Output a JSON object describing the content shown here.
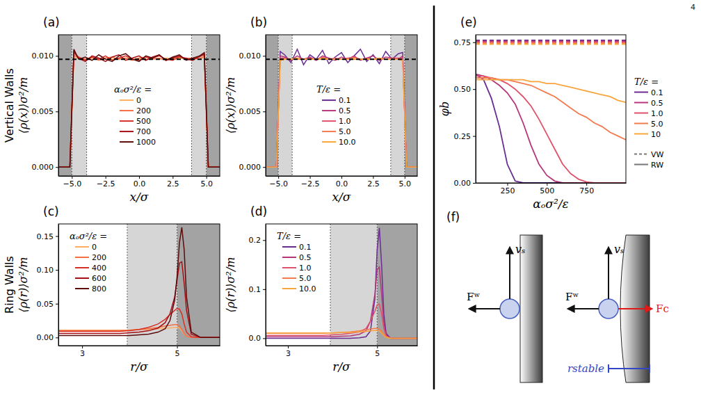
{
  "page_number": "4",
  "row_labels": [
    "Vertical Walls",
    "Ring Walls"
  ],
  "chart_data": [
    {
      "type": "line",
      "panel": "(a)",
      "xlabel": "x/σ",
      "ylabel": "⟨ρ(x)⟩σ²/m",
      "xlim": [
        -6,
        6
      ],
      "ylim": [
        -0.0008,
        0.0119
      ],
      "xticks": [
        {
          "value": -5,
          "label": "−5.0"
        },
        {
          "value": -2.5,
          "label": "−2.5"
        },
        {
          "value": 0,
          "label": "0.0"
        },
        2.5,
        {
          "value": 5,
          "label": "5.0"
        }
      ],
      "yticks": [
        {
          "value": 0,
          "label": "0.000"
        },
        0.005,
        {
          "value": 0.01,
          "label": "0.010"
        }
      ],
      "legend": "center",
      "legend_title": "αₒσ²/ε =",
      "walls": [
        -5,
        5
      ],
      "interaction_zones": [
        [
          -5,
          -3.9
        ],
        [
          3.9,
          5
        ]
      ],
      "reference_density": 0.0097,
      "x": [
        -6,
        -5.15,
        -5.0,
        -4.85,
        -4.5,
        -4,
        -3.5,
        -3,
        -2.5,
        -2,
        -1.5,
        -1,
        -0.5,
        0,
        0.5,
        1,
        1.5,
        2,
        2.5,
        3,
        3.5,
        4,
        4.5,
        4.85,
        5.0,
        5.15,
        6
      ],
      "series": [
        {
          "name": "0",
          "color": "#fdae61",
          "values": [
            0,
            0,
            0.0049,
            0.0099,
            0.0098,
            0.0097,
            0.0098,
            0.0097,
            0.0098,
            0.0097,
            0.0098,
            0.0098,
            0.0097,
            0.0098,
            0.0097,
            0.0098,
            0.0097,
            0.0098,
            0.0097,
            0.0098,
            0.0097,
            0.0098,
            0.0097,
            0.0099,
            0.0049,
            0,
            0
          ]
        },
        {
          "name": "200",
          "color": "#f46d43",
          "values": [
            0,
            0,
            0.005,
            0.0101,
            0.0098,
            0.0097,
            0.0099,
            0.0096,
            0.0098,
            0.0099,
            0.0097,
            0.0098,
            0.0096,
            0.0098,
            0.0099,
            0.0097,
            0.0098,
            0.0096,
            0.0098,
            0.0099,
            0.0097,
            0.0098,
            0.0097,
            0.01,
            0.005,
            0,
            0
          ]
        },
        {
          "name": "500",
          "color": "#d73027",
          "values": [
            0,
            0,
            0.0051,
            0.0103,
            0.0099,
            0.0096,
            0.0099,
            0.0097,
            0.01,
            0.0096,
            0.0098,
            0.01,
            0.0097,
            0.0096,
            0.0099,
            0.0098,
            0.01,
            0.0097,
            0.0096,
            0.0099,
            0.0098,
            0.0097,
            0.0099,
            0.0102,
            0.0051,
            0,
            0
          ]
        },
        {
          "name": "700",
          "color": "#a50f15",
          "values": [
            0,
            0,
            0.0052,
            0.0104,
            0.0098,
            0.0095,
            0.01,
            0.0098,
            0.0095,
            0.0099,
            0.0101,
            0.0096,
            0.0098,
            0.01,
            0.0096,
            0.0099,
            0.0101,
            0.0096,
            0.0098,
            0.01,
            0.0097,
            0.0096,
            0.01,
            0.0101,
            0.0052,
            0,
            0
          ]
        },
        {
          "name": "1000",
          "color": "#5c0a0a",
          "values": [
            0,
            0,
            0.0053,
            0.0106,
            0.0097,
            0.0099,
            0.0096,
            0.0101,
            0.0097,
            0.0095,
            0.01,
            0.0102,
            0.0097,
            0.0095,
            0.01,
            0.0098,
            0.0101,
            0.0096,
            0.0099,
            0.0101,
            0.0096,
            0.0098,
            0.01,
            0.0103,
            0.0052,
            0,
            0
          ]
        }
      ]
    },
    {
      "type": "line",
      "panel": "(b)",
      "xlabel": "x/σ",
      "ylabel": "⟨ρ(x)⟩σ²/m",
      "xlim": [
        -6,
        6
      ],
      "ylim": [
        -0.0008,
        0.0119
      ],
      "xticks": [
        {
          "value": -5,
          "label": "−5.0"
        },
        {
          "value": -2.5,
          "label": "−2.5"
        },
        {
          "value": 0,
          "label": "0.0"
        },
        2.5,
        {
          "value": 5,
          "label": "5.0"
        }
      ],
      "yticks": [
        {
          "value": 0,
          "label": "0.000"
        },
        0.005,
        {
          "value": 0.01,
          "label": "0.010"
        }
      ],
      "legend": "center",
      "legend_title": "T/ε =",
      "walls": [
        -5,
        5
      ],
      "interaction_zones": [
        [
          -5,
          -3.9
        ],
        [
          3.9,
          5
        ]
      ],
      "reference_density": 0.0097,
      "x": [
        -6,
        -5.15,
        -5.0,
        -4.85,
        -4.5,
        -4,
        -3.5,
        -3,
        -2.5,
        -2,
        -1.5,
        -1,
        -0.5,
        0,
        0.5,
        1,
        1.5,
        2,
        2.5,
        3,
        3.5,
        4,
        4.5,
        4.85,
        5.0,
        5.15,
        6
      ],
      "series": [
        {
          "name": "0.1",
          "color": "#6a2c91",
          "values": [
            0,
            0,
            0.0052,
            0.0104,
            0.0101,
            0.0094,
            0.0106,
            0.0092,
            0.0101,
            0.0097,
            0.0105,
            0.0093,
            0.0099,
            0.0103,
            0.0094,
            0.01,
            0.0106,
            0.0095,
            0.0101,
            0.0093,
            0.0104,
            0.0097,
            0.0102,
            0.0103,
            0.0051,
            0,
            0
          ]
        },
        {
          "name": "0.5",
          "color": "#b5367a",
          "values": [
            0,
            0,
            0.005,
            0.01,
            0.0099,
            0.0096,
            0.01,
            0.0097,
            0.0099,
            0.0096,
            0.01,
            0.0098,
            0.0096,
            0.0099,
            0.0097,
            0.01,
            0.0096,
            0.0098,
            0.01,
            0.0096,
            0.0099,
            0.0098,
            0.0097,
            0.01,
            0.005,
            0,
            0
          ]
        },
        {
          "name": "1.0",
          "color": "#e0526a",
          "values": [
            0,
            0,
            0.0049,
            0.0098,
            0.0098,
            0.0097,
            0.0098,
            0.0097,
            0.0098,
            0.0097,
            0.0099,
            0.0097,
            0.0098,
            0.0097,
            0.0098,
            0.0099,
            0.0097,
            0.0098,
            0.0097,
            0.0098,
            0.0097,
            0.0098,
            0.0098,
            0.0098,
            0.0049,
            0,
            0
          ]
        },
        {
          "name": "5.0",
          "color": "#f47a4d",
          "values": [
            0,
            0,
            0.0048,
            0.0096,
            0.0097,
            0.0097,
            0.0097,
            0.0097,
            0.0097,
            0.0097,
            0.0097,
            0.0097,
            0.0097,
            0.0097,
            0.0097,
            0.0097,
            0.0097,
            0.0097,
            0.0097,
            0.0097,
            0.0097,
            0.0097,
            0.0097,
            0.0096,
            0.0048,
            0,
            0
          ]
        },
        {
          "name": "10.0",
          "color": "#f9a43a",
          "values": [
            0,
            0,
            0.0048,
            0.0096,
            0.0097,
            0.0097,
            0.0098,
            0.0097,
            0.0097,
            0.0097,
            0.0098,
            0.0097,
            0.0097,
            0.0097,
            0.0097,
            0.0098,
            0.0097,
            0.0097,
            0.0097,
            0.0098,
            0.0097,
            0.0097,
            0.0097,
            0.0096,
            0.0048,
            0,
            0
          ]
        }
      ]
    },
    {
      "type": "line",
      "panel": "(c)",
      "xlabel": "r/σ",
      "ylabel": "⟨ρ(r)⟩σ²/m",
      "xlim": [
        2.5,
        5.9
      ],
      "ylim": [
        -0.012,
        0.168
      ],
      "xticks": [
        3,
        5
      ],
      "yticks": [
        {
          "value": 0,
          "label": "0.00"
        },
        0.05,
        {
          "value": 0.1,
          "label": "0.10"
        },
        0.15
      ],
      "legend": "upper left",
      "legend_title": "αₒσ²/ε =",
      "walls": [
        5
      ],
      "interaction_zones": [
        [
          3.95,
          5
        ]
      ],
      "x": [
        2.5,
        3,
        3.5,
        3.8,
        4.0,
        4.2,
        4.4,
        4.6,
        4.75,
        4.85,
        4.95,
        5.0,
        5.05,
        5.1,
        5.15,
        5.2,
        5.3,
        5.5,
        5.9
      ],
      "series": [
        {
          "name": "0",
          "color": "#fdae61",
          "values": [
            0.011,
            0.011,
            0.011,
            0.011,
            0.011,
            0.012,
            0.012,
            0.013,
            0.014,
            0.014,
            0.015,
            0.015,
            0.014,
            0.01,
            0.005,
            0.002,
            0,
            0,
            0
          ]
        },
        {
          "name": "200",
          "color": "#f46d43",
          "values": [
            0.01,
            0.01,
            0.01,
            0.01,
            0.011,
            0.012,
            0.013,
            0.015,
            0.017,
            0.018,
            0.019,
            0.019,
            0.017,
            0.012,
            0.006,
            0.002,
            0,
            0,
            0
          ]
        },
        {
          "name": "400",
          "color": "#d73027",
          "values": [
            0.009,
            0.009,
            0.009,
            0.009,
            0.01,
            0.012,
            0.015,
            0.02,
            0.027,
            0.034,
            0.04,
            0.043,
            0.042,
            0.035,
            0.02,
            0.008,
            0.001,
            0,
            0
          ]
        },
        {
          "name": "600",
          "color": "#a50f15",
          "values": [
            0.006,
            0.006,
            0.006,
            0.006,
            0.007,
            0.008,
            0.01,
            0.014,
            0.022,
            0.035,
            0.06,
            0.085,
            0.11,
            0.112,
            0.08,
            0.04,
            0.005,
            0,
            0
          ]
        },
        {
          "name": "800",
          "color": "#5c0a0a",
          "values": [
            0.003,
            0.003,
            0.003,
            0.003,
            0.003,
            0.004,
            0.005,
            0.008,
            0.013,
            0.025,
            0.055,
            0.09,
            0.14,
            0.163,
            0.13,
            0.06,
            0.008,
            0,
            0
          ]
        }
      ]
    },
    {
      "type": "line",
      "panel": "(d)",
      "xlabel": "r/σ",
      "ylabel": "⟨ρ(r)⟩σ²/m",
      "xlim": [
        2.5,
        5.9
      ],
      "ylim": [
        -0.015,
        0.233
      ],
      "xticks": [
        3,
        5
      ],
      "yticks": [
        {
          "value": 0,
          "label": "0.0"
        },
        0.1,
        0.2
      ],
      "legend": "upper left",
      "legend_title": "T/ε =",
      "walls": [
        5
      ],
      "interaction_zones": [
        [
          3.95,
          5
        ]
      ],
      "x": [
        2.5,
        3,
        3.5,
        3.8,
        4.0,
        4.2,
        4.4,
        4.6,
        4.75,
        4.85,
        4.95,
        5.0,
        5.05,
        5.1,
        5.15,
        5.2,
        5.3,
        5.5,
        5.9
      ],
      "series": [
        {
          "name": "0.1",
          "color": "#6a2c91",
          "values": [
            0,
            0,
            0,
            0,
            0,
            0,
            0,
            0.001,
            0.003,
            0.015,
            0.08,
            0.18,
            0.225,
            0.15,
            0.05,
            0.01,
            0,
            0,
            0
          ]
        },
        {
          "name": "0.5",
          "color": "#b5367a",
          "values": [
            0.003,
            0.003,
            0.003,
            0.003,
            0.003,
            0.004,
            0.005,
            0.008,
            0.015,
            0.035,
            0.09,
            0.14,
            0.145,
            0.09,
            0.03,
            0.006,
            0,
            0,
            0
          ]
        },
        {
          "name": "1.0",
          "color": "#e0526a",
          "values": [
            0.006,
            0.006,
            0.006,
            0.006,
            0.007,
            0.008,
            0.01,
            0.013,
            0.02,
            0.035,
            0.055,
            0.068,
            0.07,
            0.05,
            0.02,
            0.005,
            0,
            0,
            0
          ]
        },
        {
          "name": "5.0",
          "color": "#f47a4d",
          "values": [
            0.01,
            0.01,
            0.01,
            0.01,
            0.011,
            0.012,
            0.013,
            0.015,
            0.017,
            0.019,
            0.02,
            0.02,
            0.019,
            0.014,
            0.008,
            0.003,
            0,
            0,
            0
          ]
        },
        {
          "name": "10.0",
          "color": "#f9a43a",
          "values": [
            0.011,
            0.011,
            0.011,
            0.011,
            0.011,
            0.012,
            0.012,
            0.013,
            0.014,
            0.015,
            0.016,
            0.016,
            0.015,
            0.011,
            0.006,
            0.002,
            0,
            0,
            0
          ]
        }
      ]
    },
    {
      "type": "line",
      "panel": "(e)",
      "xlabel": "αₒσ²/ε",
      "ylabel": "φb",
      "xlim": [
        50,
        1000
      ],
      "ylim": [
        0,
        0.79
      ],
      "xticks": [
        250,
        500,
        750
      ],
      "yticks": [
        {
          "value": 0,
          "label": "0.00"
        },
        0.25,
        {
          "value": 0.5,
          "label": "0.50"
        },
        0.75
      ],
      "legend": "right",
      "legend_title": "T/ε =",
      "line_legend": [
        {
          "name": "VW",
          "line_style": "dashed"
        },
        {
          "name": "RW",
          "line_style": "solid"
        }
      ],
      "x": [
        50,
        100,
        150,
        200,
        250,
        300,
        350,
        400,
        450,
        500,
        550,
        600,
        650,
        700,
        750,
        800,
        850,
        900,
        950,
        1000
      ],
      "series": [
        {
          "name": "0.1",
          "color": "#6a2c91",
          "vw": 0.76,
          "values": [
            0.58,
            0.55,
            0.45,
            0.3,
            0.1,
            0.01,
            0,
            0,
            0,
            0,
            0,
            0,
            0,
            0,
            0,
            0,
            0,
            0,
            0,
            0
          ]
        },
        {
          "name": "0.5",
          "color": "#b5367a",
          "vw": 0.755,
          "values": [
            0.58,
            0.57,
            0.55,
            0.52,
            0.48,
            0.42,
            0.32,
            0.2,
            0.1,
            0.04,
            0.01,
            0,
            0,
            0,
            0,
            0,
            0,
            0,
            0,
            0
          ]
        },
        {
          "name": "1.0",
          "color": "#e0526a",
          "vw": 0.75,
          "values": [
            0.57,
            0.57,
            0.56,
            0.55,
            0.53,
            0.5,
            0.46,
            0.41,
            0.34,
            0.26,
            0.18,
            0.1,
            0.05,
            0.02,
            0.005,
            0,
            0,
            0,
            0,
            0
          ]
        },
        {
          "name": "5.0",
          "color": "#f47a4d",
          "vw": 0.745,
          "values": [
            0.56,
            0.56,
            0.56,
            0.55,
            0.55,
            0.54,
            0.53,
            0.52,
            0.5,
            0.48,
            0.46,
            0.43,
            0.4,
            0.37,
            0.35,
            0.32,
            0.3,
            0.27,
            0.25,
            0.23
          ]
        },
        {
          "name": "10",
          "color": "#f9a43a",
          "vw": 0.74,
          "values": [
            0.55,
            0.55,
            0.55,
            0.55,
            0.55,
            0.55,
            0.55,
            0.54,
            0.54,
            0.53,
            0.53,
            0.52,
            0.51,
            0.5,
            0.49,
            0.48,
            0.47,
            0.46,
            0.44,
            0.43
          ]
        }
      ]
    }
  ],
  "diagram": {
    "panel": "(f)",
    "labels": {
      "velocity": "vₛ",
      "wall_force": "Fʷ",
      "curvature_force": "Fc",
      "stable_radius": "rstable"
    }
  }
}
